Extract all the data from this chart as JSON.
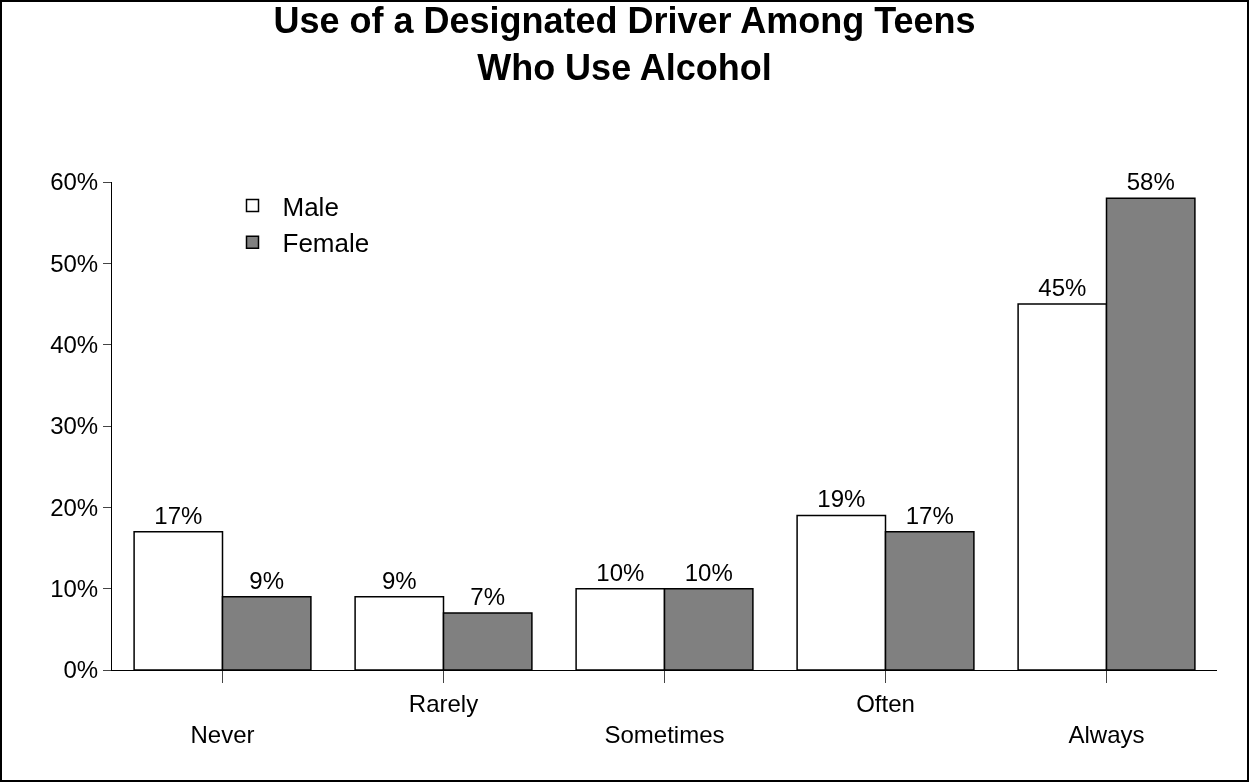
{
  "chart_data": {
    "type": "bar",
    "title": "Use of a Designated Driver Among Teens\nWho Use Alcohol",
    "categories": [
      "Never",
      "Rarely",
      "Sometimes",
      "Often",
      "Always"
    ],
    "series": [
      {
        "name": "Male",
        "color": "#ffffff",
        "values": [
          17,
          9,
          10,
          19,
          45
        ],
        "value_labels": [
          "17%",
          "9%",
          "10%",
          "19%",
          "45%"
        ]
      },
      {
        "name": "Female",
        "color": "#808080",
        "values": [
          9,
          7,
          10,
          17,
          58
        ],
        "value_labels": [
          "9%",
          "7%",
          "10%",
          "17%",
          "58%"
        ]
      }
    ],
    "ylim": [
      0,
      60
    ],
    "yticks": [
      {
        "value": 0,
        "label": "0%"
      },
      {
        "value": 10,
        "label": "10%"
      },
      {
        "value": 20,
        "label": "20%"
      },
      {
        "value": 30,
        "label": "30%"
      },
      {
        "value": 40,
        "label": "40%"
      },
      {
        "value": 50,
        "label": "50%"
      },
      {
        "value": 60,
        "label": "60%"
      }
    ],
    "grid": false,
    "legend": "top left"
  }
}
